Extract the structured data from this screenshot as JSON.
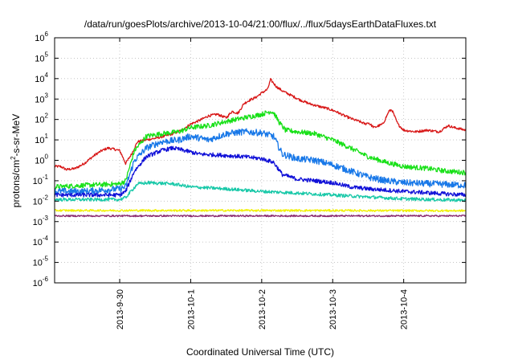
{
  "chart_data": {
    "type": "line",
    "title": "/data/run/goesPlots/archive/2013-10-04/21:00/flux/../flux/5daysEarthDataFluxes.txt",
    "xlabel": "Coordinated Universal Time (UTC)",
    "ylabel": {
      "base": "protons/cm",
      "sup": "2",
      "rest": "-s-sr-MeV"
    },
    "y_scale": "log",
    "ylim": [
      1e-06,
      1000000.0
    ],
    "xlim": [
      "2013-09-29 02:00",
      "2013-10-04 21:00"
    ],
    "grid": true,
    "x_ticks": [
      {
        "label": "2013-9-30",
        "x": "2013-09-30"
      },
      {
        "label": "2013-10-1",
        "x": "2013-10-01"
      },
      {
        "label": "2013-10-2",
        "x": "2013-10-02"
      },
      {
        "label": "2013-10-3",
        "x": "2013-10-03"
      },
      {
        "label": "2013-10-4",
        "x": "2013-10-04"
      }
    ],
    "y_ticks": [
      {
        "label": "10",
        "exp": "-6",
        "v": 1e-06
      },
      {
        "label": "10",
        "exp": "-5",
        "v": 1e-05
      },
      {
        "label": "10",
        "exp": "-4",
        "v": 0.0001
      },
      {
        "label": "10",
        "exp": "-3",
        "v": 0.001
      },
      {
        "label": "10",
        "exp": "-2",
        "v": 0.01
      },
      {
        "label": "10",
        "exp": "-1",
        "v": 0.1
      },
      {
        "label": "10",
        "exp": "0",
        "v": 1
      },
      {
        "label": "10",
        "exp": "1",
        "v": 10
      },
      {
        "label": "10",
        "exp": "2",
        "v": 100
      },
      {
        "label": "10",
        "exp": "3",
        "v": 1000
      },
      {
        "label": "10",
        "exp": "4",
        "v": 10000
      },
      {
        "label": "10",
        "exp": "5",
        "v": 100000
      },
      {
        "label": "10",
        "exp": "6",
        "v": 1000000
      }
    ],
    "series": [
      {
        "color": "#d81818",
        "noise": 0.06,
        "points": [
          [
            "2013-09-29 02:00",
            0.5
          ],
          [
            "2013-09-29 04:00",
            0.5
          ],
          [
            "2013-09-29 06:00",
            0.35
          ],
          [
            "2013-09-29 09:00",
            0.4
          ],
          [
            "2013-09-29 12:00",
            0.7
          ],
          [
            "2013-09-29 14:00",
            1.2
          ],
          [
            "2013-09-29 16:00",
            2
          ],
          [
            "2013-09-29 18:00",
            3
          ],
          [
            "2013-09-29 20:00",
            4
          ],
          [
            "2013-09-29 22:00",
            3.5
          ],
          [
            "2013-09-30 00:00",
            3
          ],
          [
            "2013-09-30 01:00",
            1.5
          ],
          [
            "2013-09-30 02:00",
            0.7
          ],
          [
            "2013-09-30 04:00",
            2
          ],
          [
            "2013-09-30 06:00",
            8
          ],
          [
            "2013-09-30 09:00",
            10
          ],
          [
            "2013-09-30 12:00",
            12
          ],
          [
            "2013-09-30 15:00",
            15
          ],
          [
            "2013-09-30 18:00",
            20
          ],
          [
            "2013-09-30 21:00",
            30
          ],
          [
            "2013-10-01 00:00",
            60
          ],
          [
            "2013-10-01 03:00",
            90
          ],
          [
            "2013-10-01 06:00",
            150
          ],
          [
            "2013-10-01 09:00",
            180
          ],
          [
            "2013-10-01 12:00",
            120
          ],
          [
            "2013-10-01 14:00",
            250
          ],
          [
            "2013-10-01 16:00",
            200
          ],
          [
            "2013-10-01 18:00",
            600
          ],
          [
            "2013-10-01 20:00",
            900
          ],
          [
            "2013-10-01 22:00",
            1200
          ],
          [
            "2013-10-02 00:00",
            2000
          ],
          [
            "2013-10-02 02:00",
            3000
          ],
          [
            "2013-10-02 03:00",
            9000
          ],
          [
            "2013-10-02 05:00",
            4000
          ],
          [
            "2013-10-02 07:00",
            2500
          ],
          [
            "2013-10-02 10:00",
            1500
          ],
          [
            "2013-10-02 13:00",
            900
          ],
          [
            "2013-10-02 16:00",
            600
          ],
          [
            "2013-10-02 19:00",
            450
          ],
          [
            "2013-10-02 22:00",
            350
          ],
          [
            "2013-10-03 01:00",
            250
          ],
          [
            "2013-10-03 04:00",
            150
          ],
          [
            "2013-10-03 07:00",
            100
          ],
          [
            "2013-10-03 09:00",
            80
          ],
          [
            "2013-10-03 11:00",
            60
          ],
          [
            "2013-10-03 12:00",
            70
          ],
          [
            "2013-10-03 14:00",
            40
          ],
          [
            "2013-10-03 17:00",
            60
          ],
          [
            "2013-10-03 19:00",
            250
          ],
          [
            "2013-10-03 20:00",
            300
          ],
          [
            "2013-10-03 22:00",
            60
          ],
          [
            "2013-10-04 00:00",
            30
          ],
          [
            "2013-10-04 04:00",
            25
          ],
          [
            "2013-10-04 08:00",
            30
          ],
          [
            "2013-10-04 12:00",
            25
          ],
          [
            "2013-10-04 15:00",
            50
          ],
          [
            "2013-10-04 17:00",
            40
          ],
          [
            "2013-10-04 19:00",
            35
          ],
          [
            "2013-10-04 21:00",
            30
          ]
        ]
      },
      {
        "color": "#18e018",
        "noise": 0.12,
        "points": [
          [
            "2013-09-29 02:00",
            0.05
          ],
          [
            "2013-09-29 12:00",
            0.06
          ],
          [
            "2013-09-30 00:00",
            0.07
          ],
          [
            "2013-09-30 02:00",
            0.1
          ],
          [
            "2013-09-30 05:00",
            3
          ],
          [
            "2013-09-30 09:00",
            15
          ],
          [
            "2013-09-30 14:00",
            20
          ],
          [
            "2013-09-30 20:00",
            25
          ],
          [
            "2013-10-01 00:00",
            40
          ],
          [
            "2013-10-01 06:00",
            50
          ],
          [
            "2013-10-01 12:00",
            80
          ],
          [
            "2013-10-01 18:00",
            120
          ],
          [
            "2013-10-02 00:00",
            180
          ],
          [
            "2013-10-02 03:00",
            250
          ],
          [
            "2013-10-02 04:00",
            220
          ],
          [
            "2013-10-02 06:00",
            70
          ],
          [
            "2013-10-02 08:00",
            30
          ],
          [
            "2013-10-02 12:00",
            25
          ],
          [
            "2013-10-02 18:00",
            20
          ],
          [
            "2013-10-03 00:00",
            10
          ],
          [
            "2013-10-03 06:00",
            4
          ],
          [
            "2013-10-03 12:00",
            1.5
          ],
          [
            "2013-10-03 18:00",
            0.8
          ],
          [
            "2013-10-04 00:00",
            0.5
          ],
          [
            "2013-10-04 08:00",
            0.4
          ],
          [
            "2013-10-04 14:00",
            0.3
          ],
          [
            "2013-10-04 21:00",
            0.25
          ]
        ]
      },
      {
        "color": "#1878e8",
        "noise": 0.16,
        "points": [
          [
            "2013-09-29 02:00",
            0.03
          ],
          [
            "2013-09-29 12:00",
            0.03
          ],
          [
            "2013-09-30 00:00",
            0.04
          ],
          [
            "2013-09-30 02:00",
            0.05
          ],
          [
            "2013-09-30 05:00",
            1
          ],
          [
            "2013-09-30 09:00",
            4
          ],
          [
            "2013-09-30 14:00",
            8
          ],
          [
            "2013-09-30 20:00",
            10
          ],
          [
            "2013-10-01 00:00",
            15
          ],
          [
            "2013-10-01 06:00",
            10
          ],
          [
            "2013-10-01 12:00",
            20
          ],
          [
            "2013-10-01 18:00",
            25
          ],
          [
            "2013-10-02 00:00",
            22
          ],
          [
            "2013-10-02 04:00",
            15
          ],
          [
            "2013-10-02 07:00",
            2
          ],
          [
            "2013-10-02 12:00",
            1.2
          ],
          [
            "2013-10-02 18:00",
            1
          ],
          [
            "2013-10-03 00:00",
            0.6
          ],
          [
            "2013-10-03 06:00",
            0.3
          ],
          [
            "2013-10-03 12:00",
            0.15
          ],
          [
            "2013-10-03 18:00",
            0.1
          ],
          [
            "2013-10-04 00:00",
            0.08
          ],
          [
            "2013-10-04 10:00",
            0.07
          ],
          [
            "2013-10-04 21:00",
            0.06
          ]
        ]
      },
      {
        "color": "#1010d8",
        "noise": 0.1,
        "points": [
          [
            "2013-09-29 02:00",
            0.02
          ],
          [
            "2013-09-29 12:00",
            0.02
          ],
          [
            "2013-09-30 00:00",
            0.02
          ],
          [
            "2013-09-30 02:00",
            0.03
          ],
          [
            "2013-09-30 05:00",
            0.3
          ],
          [
            "2013-09-30 09:00",
            1.5
          ],
          [
            "2013-09-30 14:00",
            3
          ],
          [
            "2013-09-30 18:00",
            4
          ],
          [
            "2013-09-30 22:00",
            3
          ],
          [
            "2013-10-01 03:00",
            2
          ],
          [
            "2013-10-01 10:00",
            1.8
          ],
          [
            "2013-10-01 18:00",
            1.5
          ],
          [
            "2013-10-02 00:00",
            1.2
          ],
          [
            "2013-10-02 04:00",
            0.8
          ],
          [
            "2013-10-02 07:00",
            0.2
          ],
          [
            "2013-10-02 12:00",
            0.12
          ],
          [
            "2013-10-02 18:00",
            0.1
          ],
          [
            "2013-10-03 00:00",
            0.08
          ],
          [
            "2013-10-03 06:00",
            0.05
          ],
          [
            "2013-10-03 12:00",
            0.04
          ],
          [
            "2013-10-03 18:00",
            0.035
          ],
          [
            "2013-10-04 00:00",
            0.03
          ],
          [
            "2013-10-04 21:00",
            0.02
          ]
        ]
      },
      {
        "color": "#18c8a8",
        "noise": 0.08,
        "points": [
          [
            "2013-09-29 02:00",
            0.012
          ],
          [
            "2013-09-29 12:00",
            0.012
          ],
          [
            "2013-09-30 00:00",
            0.012
          ],
          [
            "2013-09-30 02:00",
            0.015
          ],
          [
            "2013-09-30 06:00",
            0.07
          ],
          [
            "2013-09-30 10:00",
            0.08
          ],
          [
            "2013-09-30 18:00",
            0.07
          ],
          [
            "2013-10-01 00:00",
            0.05
          ],
          [
            "2013-10-01 12:00",
            0.04
          ],
          [
            "2013-10-02 00:00",
            0.03
          ],
          [
            "2013-10-02 12:00",
            0.025
          ],
          [
            "2013-10-03 00:00",
            0.02
          ],
          [
            "2013-10-03 12:00",
            0.016
          ],
          [
            "2013-10-04 00:00",
            0.013
          ],
          [
            "2013-10-04 21:00",
            0.011
          ]
        ]
      },
      {
        "color": "#f0f000",
        "noise": 0.05,
        "points": [
          [
            "2013-09-29 02:00",
            0.0035
          ],
          [
            "2013-10-01 00:00",
            0.0035
          ],
          [
            "2013-10-02 12:00",
            0.0035
          ],
          [
            "2013-10-04 21:00",
            0.0034
          ]
        ]
      },
      {
        "color": "#8b2a6e",
        "noise": 0.04,
        "points": [
          [
            "2013-09-29 02:00",
            0.0019
          ],
          [
            "2013-10-01 00:00",
            0.0019
          ],
          [
            "2013-10-02 12:00",
            0.0019
          ],
          [
            "2013-10-04 21:00",
            0.0019
          ]
        ]
      }
    ]
  }
}
